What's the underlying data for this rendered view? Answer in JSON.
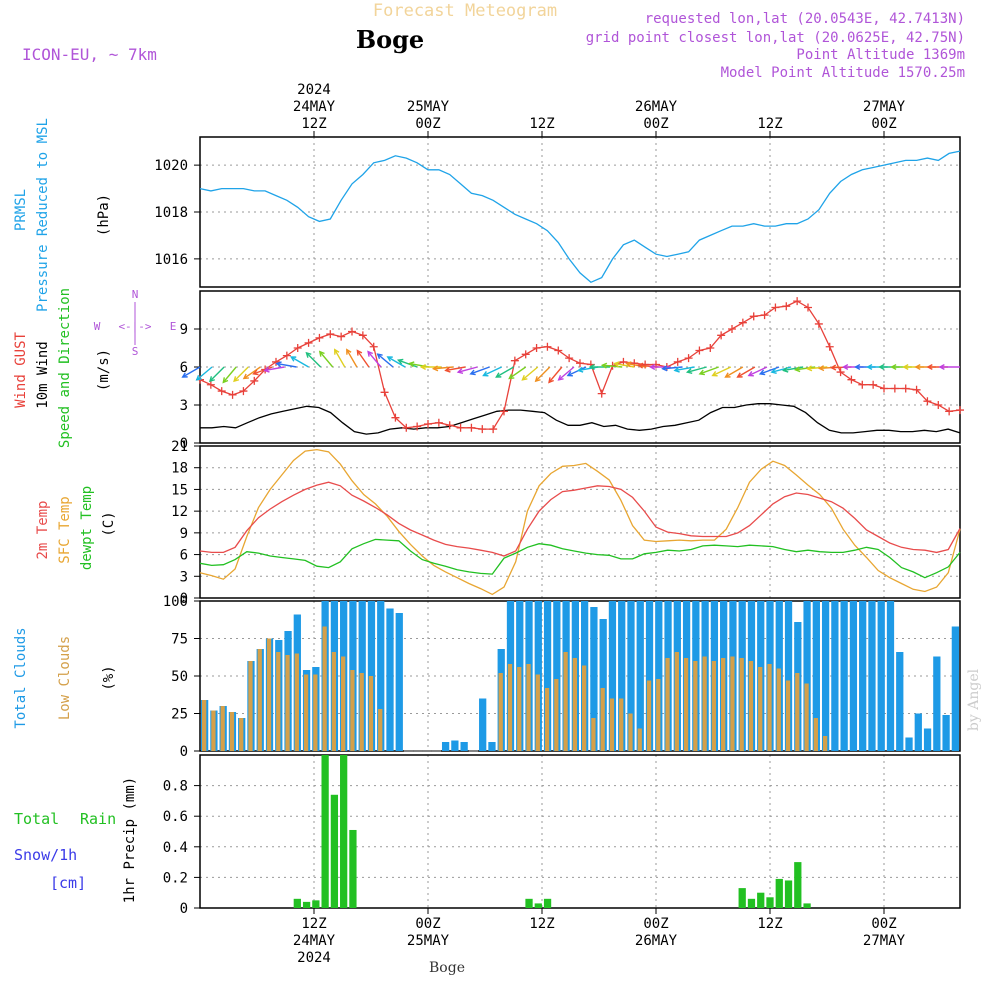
{
  "header": {
    "title_top": "Forecast Meteogram",
    "station": "Boge",
    "model": "ICON-EU, ~ 7km",
    "requested": "requested lon,lat (20.0543E, 42.7413N)",
    "grid_point": "grid point closest lon,lat (20.0625E, 42.75N)",
    "point_altitude": "Point Altitude 1369m",
    "model_altitude": "Model Point Altitude 1570.25m"
  },
  "time_axis": {
    "hours": 80,
    "top_labels": [
      {
        "h": 12,
        "lines": [
          "2024",
          "24MAY",
          "12Z"
        ]
      },
      {
        "h": 24,
        "lines": [
          "25MAY",
          "00Z"
        ]
      },
      {
        "h": 36,
        "lines": [
          "12Z"
        ]
      },
      {
        "h": 48,
        "lines": [
          "26MAY",
          "00Z"
        ]
      },
      {
        "h": 60,
        "lines": [
          "12Z"
        ]
      },
      {
        "h": 72,
        "lines": [
          "27MAY",
          "00Z"
        ]
      }
    ],
    "bottom_labels": [
      {
        "h": 12,
        "lines": [
          "12Z",
          "24MAY",
          "2024"
        ]
      },
      {
        "h": 24,
        "lines": [
          "00Z",
          "25MAY"
        ]
      },
      {
        "h": 36,
        "lines": [
          "12Z"
        ]
      },
      {
        "h": 48,
        "lines": [
          "00Z",
          "26MAY"
        ]
      },
      {
        "h": 60,
        "lines": [
          "12Z"
        ]
      },
      {
        "h": 72,
        "lines": [
          "00Z",
          "27MAY"
        ]
      }
    ],
    "footer_station": "Boge"
  },
  "labels": {
    "p1": {
      "a": "PRMSL",
      "b": "Pressure Reduced to MSL",
      "unit": "(hPa)"
    },
    "p2": {
      "a": "Wind GUST",
      "b": "10m Wind",
      "c": "Speed and Direction",
      "unit": "(m/s)",
      "compass_n": "N",
      "compass_s": "S",
      "compass_w": "W",
      "compass_e": "E",
      "compass_h": "<-|->"
    },
    "p3": {
      "a": "2m Temp",
      "b": "SFC Temp",
      "c": "dewpt Temp",
      "unit": "(C)"
    },
    "p4": {
      "a": "Total Clouds",
      "b": "Low Clouds",
      "unit": "(%)"
    },
    "p5": {
      "a": "Total",
      "b": "Rain",
      "c": "Snow/1h",
      "d": "[cm]",
      "unit": "1hr Precip (mm)"
    },
    "watermark": "by Angel"
  },
  "colors": {
    "pressure": "#1fa3e8",
    "gust": "#e8413a",
    "wind": "#000000",
    "temp2m": "#e84c4c",
    "sfc": "#e8a632",
    "dewpt": "#22c022",
    "total_clouds": "#1e9ae6",
    "low_clouds": "#d4a04a",
    "precip": "#22c022",
    "header_title": "#f2d49a",
    "purple": "#b055d8",
    "snow_label": "#3a3ae8"
  },
  "chart_data": [
    {
      "type": "line",
      "title": "PRMSL Pressure Reduced to MSL",
      "ylabel": "(hPa)",
      "ylim": [
        1014.8,
        1021.2
      ],
      "yticks": [
        1016,
        1018,
        1020
      ],
      "series": [
        {
          "name": "PRMSL",
          "values": [
            1019.0,
            1018.9,
            1019.0,
            1019.0,
            1019.0,
            1018.9,
            1018.9,
            1018.7,
            1018.5,
            1018.2,
            1017.8,
            1017.6,
            1017.7,
            1018.5,
            1019.2,
            1019.6,
            1020.1,
            1020.2,
            1020.4,
            1020.3,
            1020.1,
            1019.8,
            1019.8,
            1019.6,
            1019.2,
            1018.8,
            1018.7,
            1018.5,
            1018.2,
            1017.9,
            1017.7,
            1017.5,
            1017.2,
            1016.7,
            1016.0,
            1015.4,
            1015.0,
            1015.2,
            1016.0,
            1016.6,
            1016.8,
            1016.5,
            1016.2,
            1016.1,
            1016.2,
            1016.3,
            1016.8,
            1017.0,
            1017.2,
            1017.4,
            1017.4,
            1017.5,
            1017.4,
            1017.4,
            1017.5,
            1017.5,
            1017.7,
            1018.1,
            1018.8,
            1019.3,
            1019.6,
            1019.8,
            1019.9,
            1020.0,
            1020.1,
            1020.2,
            1020.2,
            1020.3,
            1020.2,
            1020.5,
            1020.6
          ]
        }
      ]
    },
    {
      "type": "line",
      "title": "Wind GUST / 10m Wind Speed and Direction",
      "ylabel": "(m/s)",
      "ylim": [
        0,
        12
      ],
      "yticks": [
        0,
        3,
        6,
        9
      ],
      "series": [
        {
          "name": "Wind GUST",
          "values": [
            5.0,
            4.6,
            4.1,
            3.8,
            4.1,
            4.9,
            5.8,
            6.4,
            6.9,
            7.5,
            7.9,
            8.3,
            8.6,
            8.4,
            8.8,
            8.5,
            7.6,
            4.0,
            2.0,
            1.2,
            1.3,
            1.5,
            1.6,
            1.4,
            1.2,
            1.2,
            1.1,
            1.1,
            2.5,
            6.5,
            7.0,
            7.5,
            7.6,
            7.3,
            6.7,
            6.3,
            6.2,
            3.9,
            6.1,
            6.4,
            6.3,
            6.2,
            6.2,
            6.0,
            6.4,
            6.7,
            7.3,
            7.5,
            8.5,
            9.0,
            9.5,
            10.0,
            10.1,
            10.7,
            10.8,
            11.2,
            10.7,
            9.4,
            7.6,
            5.6,
            5.0,
            4.6,
            4.6,
            4.3,
            4.3,
            4.3,
            4.2,
            3.3,
            3.0,
            2.5,
            2.6
          ]
        },
        {
          "name": "10m Wind",
          "values": [
            1.2,
            1.2,
            1.3,
            1.2,
            1.6,
            2.0,
            2.3,
            2.5,
            2.7,
            2.9,
            2.8,
            2.4,
            1.6,
            0.9,
            0.7,
            0.8,
            1.1,
            1.2,
            1.1,
            1.2,
            1.2,
            1.3,
            1.6,
            1.9,
            2.2,
            2.5,
            2.6,
            2.6,
            2.5,
            2.4,
            1.8,
            1.4,
            1.4,
            1.6,
            1.3,
            1.4,
            1.1,
            1.0,
            1.1,
            1.3,
            1.4,
            1.6,
            1.8,
            2.4,
            2.8,
            2.8,
            3.0,
            3.1,
            3.1,
            3.0,
            2.9,
            2.4,
            1.6,
            1.0,
            0.8,
            0.8,
            0.9,
            1.0,
            1.0,
            0.9,
            0.9,
            1.0,
            0.9,
            1.1,
            0.8
          ]
        }
      ],
      "wind_dir_deg": [
        240,
        230,
        225,
        220,
        225,
        235,
        250,
        260,
        280,
        300,
        315,
        320,
        330,
        330,
        325,
        320,
        310,
        300,
        290,
        280,
        270,
        265,
        260,
        255,
        250,
        245,
        240,
        235,
        230,
        225,
        220,
        230,
        245,
        260,
        270,
        275,
        280,
        280,
        275,
        270,
        265,
        260,
        255,
        250,
        245,
        240,
        240,
        245,
        250,
        255,
        260,
        262,
        265,
        266,
        268,
        270,
        270,
        270,
        270,
        270,
        270,
        270,
        270,
        270
      ]
    },
    {
      "type": "line",
      "title": "2m Temp / SFC Temp / dewpt Temp",
      "ylabel": "(C)",
      "ylim": [
        0,
        21
      ],
      "yticks": [
        0,
        3,
        6,
        9,
        12,
        15,
        18,
        21
      ],
      "series": [
        {
          "name": "2m Temp",
          "values": [
            6.5,
            6.3,
            6.3,
            7.0,
            9.3,
            11.1,
            12.3,
            13.3,
            14.2,
            15.0,
            15.6,
            16.0,
            15.5,
            14.2,
            13.4,
            12.5,
            11.5,
            10.3,
            9.4,
            8.7,
            8.0,
            7.4,
            7.1,
            6.9,
            6.6,
            6.3,
            5.8,
            6.5,
            9.5,
            12.0,
            13.6,
            14.7,
            14.9,
            15.2,
            15.5,
            15.4,
            15.0,
            13.9,
            12.0,
            9.8,
            9.1,
            8.9,
            8.6,
            8.5,
            8.5,
            8.5,
            9.0,
            10.0,
            11.5,
            13.0,
            14.0,
            14.5,
            14.3,
            13.8,
            13.3,
            12.4,
            11.0,
            9.4,
            8.5,
            7.6,
            7.0,
            6.7,
            6.6,
            6.3,
            6.7,
            9.6
          ]
        },
        {
          "name": "SFC Temp",
          "values": [
            3.5,
            3.1,
            2.6,
            4.0,
            8.5,
            12.5,
            15.0,
            17.0,
            19.0,
            20.3,
            20.5,
            20.2,
            18.5,
            16.2,
            14.3,
            13.0,
            11.3,
            9.2,
            7.4,
            5.8,
            4.5,
            3.6,
            2.8,
            2.0,
            1.3,
            0.5,
            1.5,
            5.0,
            12.0,
            15.5,
            17.2,
            18.2,
            18.3,
            18.6,
            17.5,
            16.3,
            13.5,
            10.0,
            8.0,
            7.8,
            7.9,
            8.0,
            7.9,
            8.0,
            8.0,
            9.5,
            12.5,
            16.0,
            17.8,
            18.9,
            18.3,
            17.0,
            15.6,
            14.3,
            12.4,
            9.5,
            7.3,
            5.6,
            3.8,
            2.8,
            2.0,
            1.2,
            0.9,
            1.5,
            3.5,
            9.5
          ]
        },
        {
          "name": "dewpt Temp",
          "values": [
            4.8,
            4.5,
            4.6,
            5.3,
            6.4,
            6.2,
            5.8,
            5.6,
            5.4,
            5.2,
            4.4,
            4.2,
            5.0,
            6.8,
            7.5,
            8.1,
            8.0,
            7.9,
            6.5,
            5.3,
            4.8,
            4.4,
            3.9,
            3.6,
            3.4,
            3.3,
            5.5,
            6.2,
            7.0,
            7.5,
            7.3,
            6.8,
            6.5,
            6.2,
            6.0,
            5.9,
            5.4,
            5.4,
            6.1,
            6.3,
            6.6,
            6.5,
            6.7,
            7.2,
            7.3,
            7.2,
            7.1,
            7.3,
            7.2,
            7.1,
            6.7,
            6.4,
            6.6,
            6.4,
            6.3,
            6.3,
            6.6,
            7.0,
            6.7,
            5.6,
            4.2,
            3.6,
            2.8,
            3.5,
            4.3,
            6.3
          ]
        }
      ]
    },
    {
      "type": "bar",
      "title": "Total Clouds / Low Clouds",
      "ylabel": "(%)",
      "ylim": [
        0,
        100
      ],
      "yticks": [
        0,
        25,
        50,
        75,
        100
      ],
      "series": [
        {
          "name": "Total Clouds",
          "values": [
            34,
            27,
            30,
            26,
            22,
            60,
            68,
            75,
            74,
            80,
            91,
            54,
            56,
            100,
            100,
            100,
            100,
            100,
            100,
            100,
            95,
            92,
            0,
            0,
            0,
            0,
            6,
            7,
            6,
            0,
            35,
            6,
            68,
            100,
            100,
            100,
            100,
            100,
            100,
            100,
            100,
            100,
            96,
            88,
            100,
            100,
            100,
            100,
            100,
            100,
            100,
            100,
            100,
            100,
            100,
            100,
            100,
            100,
            100,
            100,
            100,
            100,
            100,
            100,
            86,
            100,
            100,
            100,
            100,
            100,
            100,
            100,
            100,
            100,
            100,
            66,
            9,
            25,
            15,
            63,
            24,
            83
          ]
        },
        {
          "name": "Low Clouds",
          "values": [
            34,
            27,
            30,
            26,
            22,
            60,
            68,
            75,
            66,
            64,
            65,
            51,
            51,
            83,
            66,
            63,
            54,
            52,
            50,
            28,
            0,
            0,
            0,
            0,
            0,
            0,
            0,
            0,
            0,
            0,
            0,
            0,
            52,
            58,
            56,
            58,
            51,
            42,
            48,
            66,
            62,
            57,
            22,
            42,
            35,
            35,
            25,
            15,
            47,
            48,
            62,
            66,
            62,
            60,
            63,
            60,
            62,
            63,
            62,
            60,
            56,
            58,
            55,
            47,
            52,
            45,
            22,
            10,
            0,
            0,
            0,
            0,
            0,
            0,
            0,
            0,
            0,
            0,
            0,
            0,
            0,
            0
          ]
        }
      ]
    },
    {
      "type": "bar",
      "title": "1hr Precip",
      "ylabel": "1hr Precip (mm)",
      "ylim": [
        0,
        1.0
      ],
      "yticks": [
        0,
        0.2,
        0.4,
        0.6,
        0.8
      ],
      "series": [
        {
          "name": "Total Rain",
          "values": [
            0,
            0,
            0,
            0,
            0,
            0,
            0,
            0,
            0,
            0,
            0.06,
            0.04,
            0.05,
            1.0,
            0.74,
            1.0,
            0.51,
            0,
            0,
            0,
            0,
            0,
            0,
            0,
            0,
            0,
            0,
            0,
            0,
            0,
            0,
            0,
            0,
            0,
            0,
            0.06,
            0.03,
            0.06,
            0,
            0,
            0,
            0,
            0,
            0,
            0,
            0,
            0,
            0,
            0,
            0,
            0,
            0,
            0,
            0,
            0,
            0,
            0,
            0,
            0.13,
            0.06,
            0.1,
            0.07,
            0.19,
            0.18,
            0.3,
            0.03,
            0,
            0,
            0,
            0,
            0,
            0,
            0,
            0,
            0,
            0,
            0,
            0,
            0,
            0,
            0,
            0
          ]
        }
      ]
    }
  ]
}
